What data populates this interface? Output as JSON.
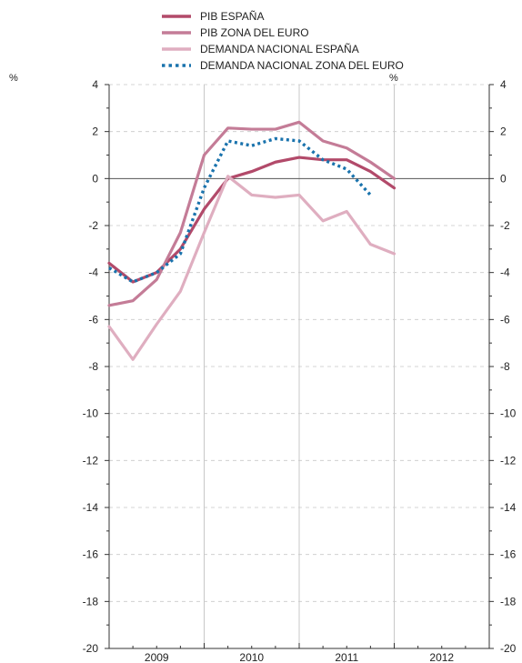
{
  "chart_data": {
    "type": "line",
    "title": "",
    "y_unit_left": "%",
    "y_unit_right": "%",
    "ylim": [
      -20,
      4
    ],
    "y_ticks": [
      4,
      2,
      0,
      -2,
      -4,
      -6,
      -8,
      -10,
      -12,
      -14,
      -16,
      -18,
      -20
    ],
    "x_labels": [
      "2009",
      "2010",
      "2011",
      "2012"
    ],
    "x_label_positions": [
      2009.5,
      2010.5,
      2011.5,
      2012.5
    ],
    "xlim": [
      2009.0,
      2013.0
    ],
    "legend_position": "top",
    "grid": true,
    "series": [
      {
        "name": "PIB ESPAÑA",
        "color": "#b24a6a",
        "style": "solid",
        "x": [
          2009.0,
          2009.25,
          2009.5,
          2009.75,
          2010.0,
          2010.25,
          2010.5,
          2010.75,
          2011.0,
          2011.25,
          2011.5,
          2011.75,
          2012.0
        ],
        "y": [
          -3.6,
          -4.4,
          -4.0,
          -3.0,
          -1.3,
          0.0,
          0.3,
          0.7,
          0.9,
          0.8,
          0.8,
          0.3,
          -0.4
        ]
      },
      {
        "name": "PIB ZONA DEL EURO",
        "color": "#c47c97",
        "style": "solid",
        "x": [
          2009.0,
          2009.25,
          2009.5,
          2009.75,
          2010.0,
          2010.25,
          2010.5,
          2010.75,
          2011.0,
          2011.25,
          2011.5,
          2011.75,
          2012.0
        ],
        "y": [
          -5.4,
          -5.2,
          -4.3,
          -2.3,
          1.0,
          2.15,
          2.1,
          2.1,
          2.4,
          1.6,
          1.3,
          0.7,
          0.0
        ]
      },
      {
        "name": "DEMANDA NACIONAL ESPAÑA",
        "color": "#dfaec0",
        "style": "solid",
        "x": [
          2009.0,
          2009.25,
          2009.5,
          2009.75,
          2010.0,
          2010.25,
          2010.5,
          2010.75,
          2011.0,
          2011.25,
          2011.5,
          2011.75,
          2012.0
        ],
        "y": [
          -6.3,
          -7.7,
          -6.2,
          -4.8,
          -2.3,
          0.1,
          -0.7,
          -0.8,
          -0.7,
          -1.8,
          -1.4,
          -2.8,
          -3.2
        ]
      },
      {
        "name": "DEMANDA NACIONAL ZONA DEL EURO",
        "color": "#1a73ad",
        "style": "dotted",
        "x": [
          2009.0,
          2009.25,
          2009.5,
          2009.75,
          2010.0,
          2010.25,
          2010.5,
          2010.75,
          2011.0,
          2011.25,
          2011.5,
          2011.75
        ],
        "y": [
          -3.8,
          -4.4,
          -4.0,
          -3.2,
          -0.4,
          1.6,
          1.4,
          1.7,
          1.6,
          0.8,
          0.4,
          -0.7
        ]
      }
    ]
  }
}
